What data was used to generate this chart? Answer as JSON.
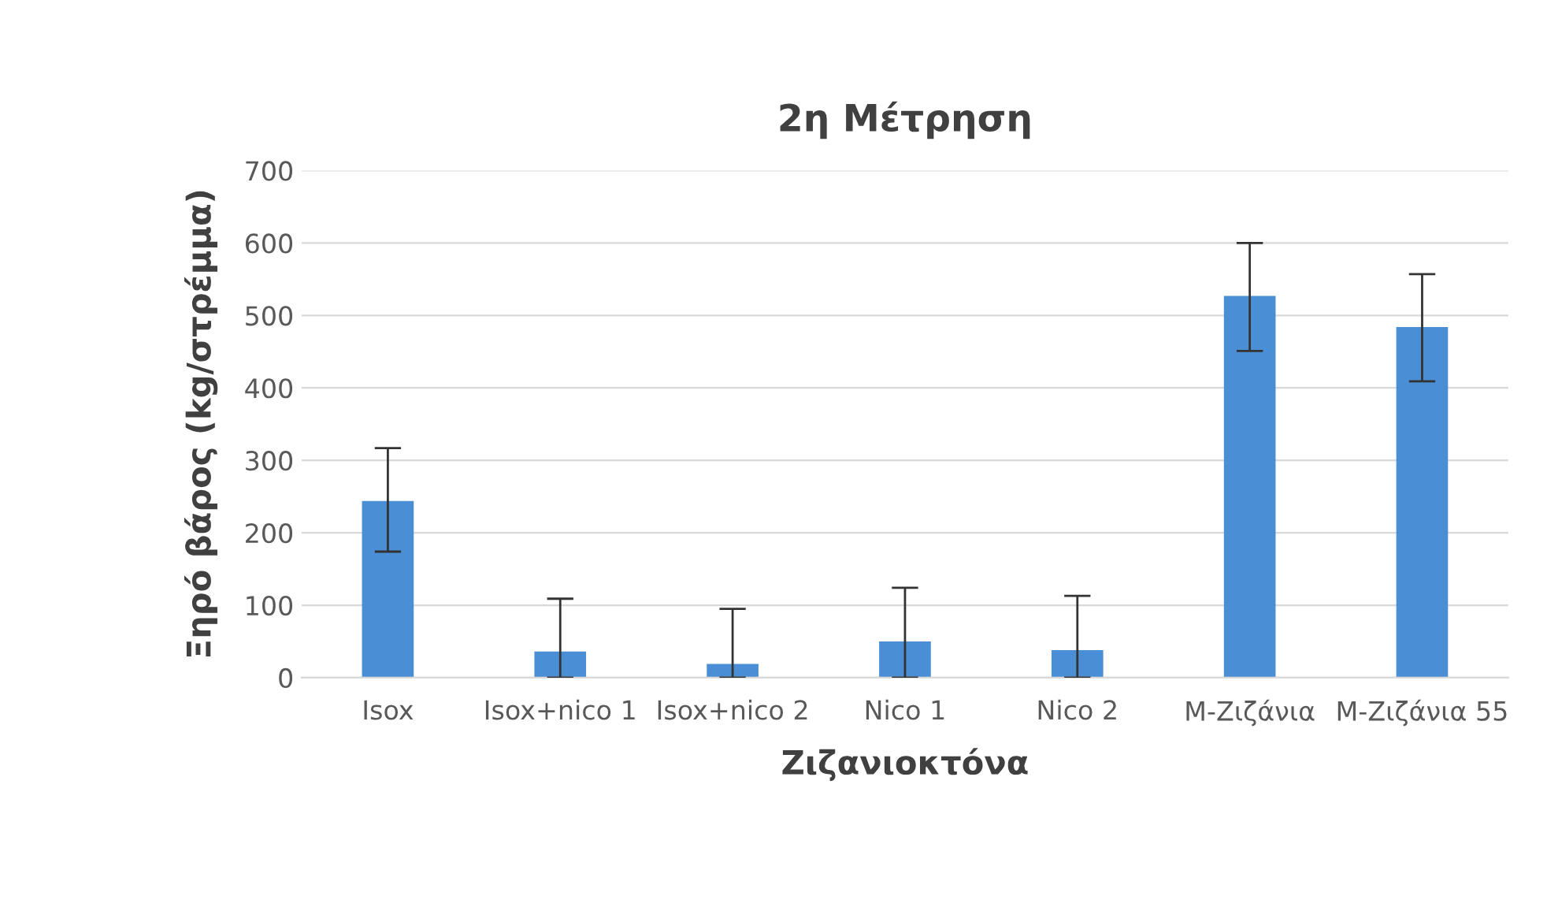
{
  "chart_data": {
    "type": "bar",
    "title": "2η Μέτρηση",
    "xlabel": "Ζιζανιοκτόνα",
    "ylabel": "Ξηρό βάρος (kg/στρέμμα)",
    "categories": [
      "Isox",
      "Isox+nico 1",
      "Isox+nico 2",
      "Nico 1",
      "Nico 2",
      "M-Ζιζάνια",
      "M-Ζιζάνια 55"
    ],
    "series": [
      {
        "color": "#4a8fd6",
        "values": [
          244,
          36,
          19,
          50,
          38,
          527,
          484
        ],
        "errors": [
          [
            174,
            317
          ],
          [
            0,
            109
          ],
          [
            0,
            95
          ],
          [
            0,
            124
          ],
          [
            0,
            113
          ],
          [
            451,
            600
          ],
          [
            409,
            557
          ]
        ]
      }
    ],
    "ylim": [
      0,
      700
    ],
    "yticks": [
      0,
      100,
      200,
      300,
      400,
      500,
      600,
      700
    ],
    "grid": "y"
  }
}
